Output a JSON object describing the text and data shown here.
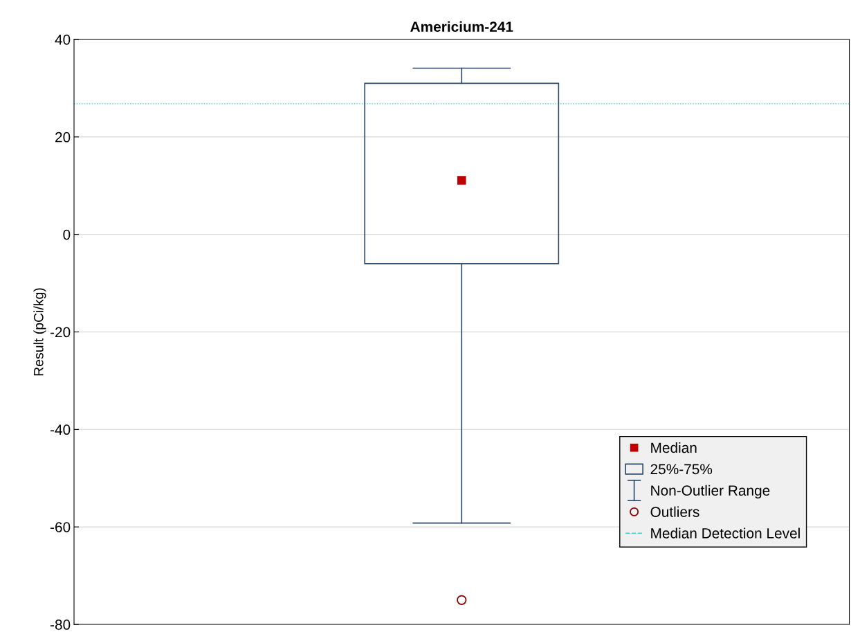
{
  "chart_data": {
    "type": "box",
    "title": "Americium-241",
    "ylabel": "Result (pCi/kg)",
    "categories": [
      null
    ],
    "series": [
      {
        "name": "25%-75%",
        "color": "#2e4a6b",
        "boxes": [
          {
            "low": -59.2,
            "q1": -6.0,
            "median": 11.1,
            "q3": 31.0,
            "high": 34.1
          }
        ]
      },
      {
        "type": "scatter",
        "name": "Outliers",
        "color": "#8b0000",
        "marker": "circle",
        "values": [
          -75
        ]
      }
    ],
    "annotations": [
      "Median",
      "Non-Outlier Range"
    ],
    "ref_lines": [
      {
        "axis": "y",
        "value": 26.8,
        "label": "Median Detection Level",
        "color": "#40d0d0",
        "line_style": "dotted"
      }
    ],
    "ylim": [
      -80,
      40
    ],
    "yticks": [
      -80,
      -60,
      -40,
      -20,
      0,
      20,
      40
    ],
    "grid": "y",
    "legend": "bottom right",
    "tick_labels": "y"
  }
}
